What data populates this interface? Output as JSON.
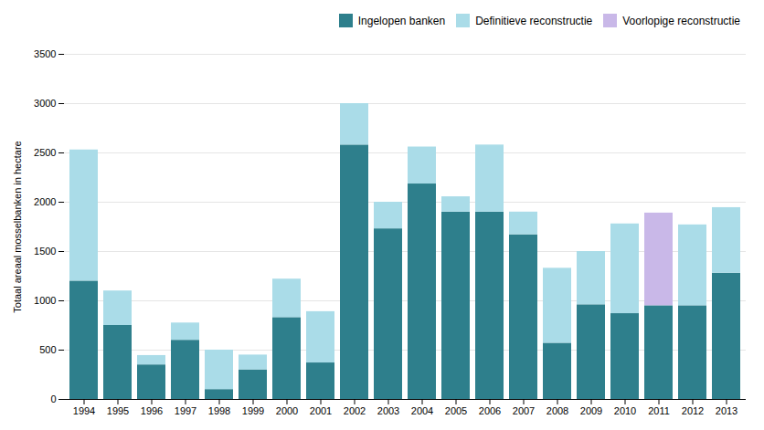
{
  "chart_data": {
    "type": "bar",
    "stacked": true,
    "categories": [
      "1994",
      "1995",
      "1996",
      "1997",
      "1998",
      "1999",
      "2000",
      "2001",
      "2002",
      "2003",
      "2004",
      "2005",
      "2006",
      "2007",
      "2008",
      "2009",
      "2010",
      "2011",
      "2012",
      "2013"
    ],
    "series": [
      {
        "name": "Ingelopen banken",
        "color": "#2e7f8c",
        "values": [
          1200,
          750,
          350,
          600,
          100,
          300,
          830,
          370,
          2580,
          1730,
          2185,
          1900,
          1900,
          1670,
          570,
          960,
          870,
          950,
          950,
          1280
        ]
      },
      {
        "name": "Definitieve reconstructie",
        "color": "#aadce8",
        "values": [
          1330,
          350,
          95,
          175,
          400,
          150,
          390,
          520,
          420,
          270,
          375,
          155,
          680,
          230,
          760,
          540,
          910,
          0,
          820,
          665
        ]
      },
      {
        "name": "Voorlopige reconstructie",
        "color": "#c9b8e8",
        "values": [
          0,
          0,
          0,
          0,
          0,
          0,
          0,
          0,
          0,
          0,
          0,
          0,
          0,
          0,
          0,
          0,
          0,
          940,
          0,
          0
        ]
      }
    ],
    "ylabel": "Totaal areaal mosselbanken in hectare",
    "ylim": [
      0,
      3500
    ],
    "yticks": [
      0,
      500,
      1000,
      1500,
      2000,
      2500,
      3000,
      3500
    ],
    "grid": true,
    "legend": "upper right"
  }
}
